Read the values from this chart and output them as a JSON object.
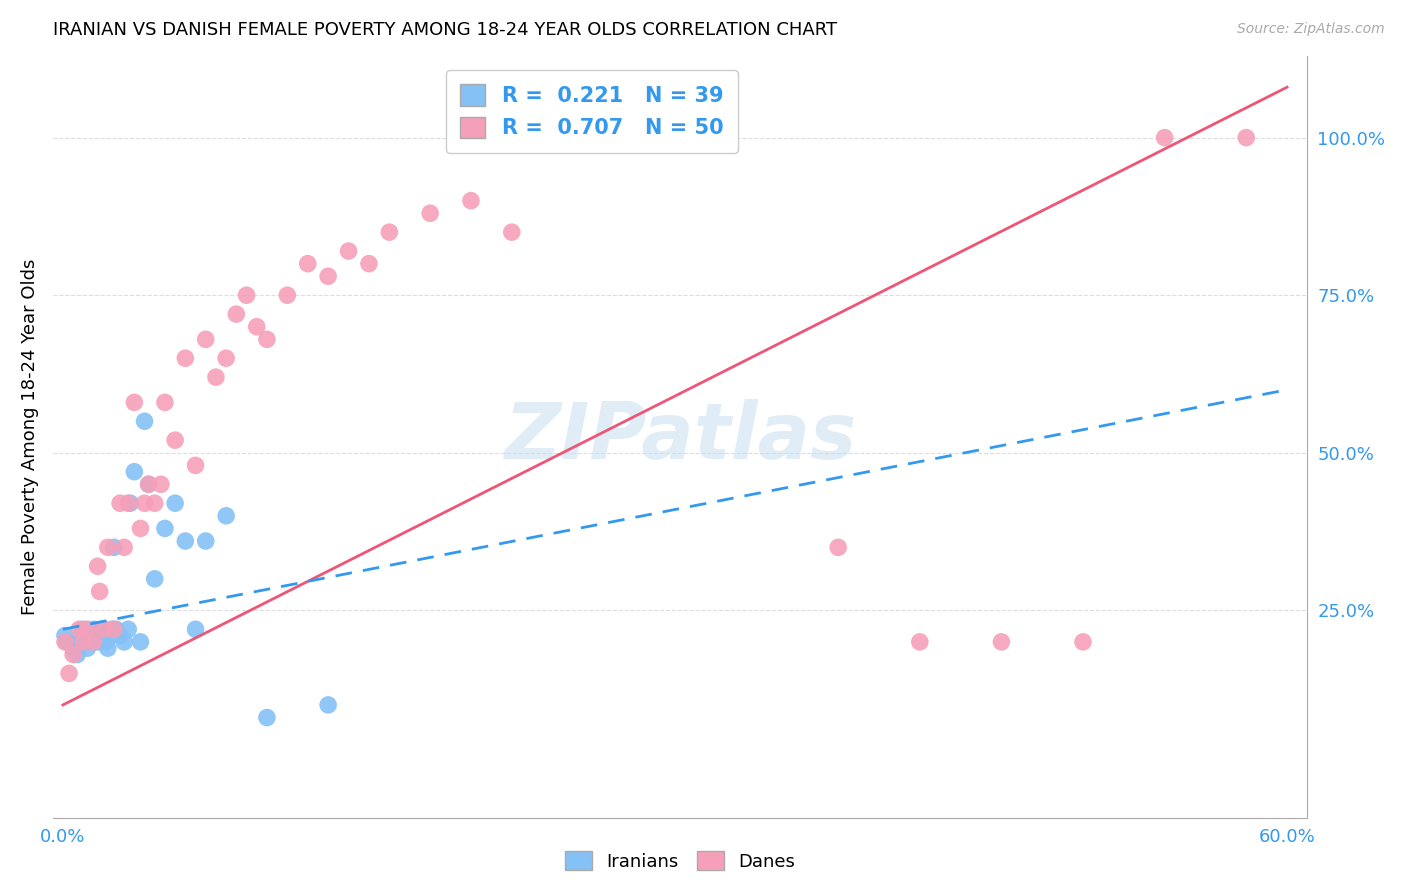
{
  "title": "IRANIAN VS DANISH FEMALE POVERTY AMONG 18-24 YEAR OLDS CORRELATION CHART",
  "source": "Source: ZipAtlas.com",
  "ylabel": "Female Poverty Among 18-24 Year Olds",
  "xlim_min": -0.005,
  "xlim_max": 0.61,
  "ylim_min": -0.08,
  "ylim_max": 1.13,
  "iranians_color": "#85c1f5",
  "danes_color": "#f5a0b8",
  "iranians_line_color": "#3399ee",
  "danes_line_color": "#ee5577",
  "R_iranians": 0.221,
  "N_iranians": 39,
  "R_danes": 0.707,
  "N_danes": 50,
  "watermark_text": "ZIPatlas",
  "background_color": "#ffffff",
  "grid_color": "#dddddd",
  "iranians_x": [
    0.001,
    0.002,
    0.005,
    0.007,
    0.008,
    0.009,
    0.01,
    0.011,
    0.012,
    0.013,
    0.015,
    0.016,
    0.017,
    0.018,
    0.019,
    0.02,
    0.021,
    0.022,
    0.023,
    0.024,
    0.025,
    0.026,
    0.028,
    0.03,
    0.032,
    0.033,
    0.035,
    0.038,
    0.04,
    0.042,
    0.045,
    0.05,
    0.055,
    0.06,
    0.065,
    0.07,
    0.08,
    0.1,
    0.13
  ],
  "iranians_y": [
    0.21,
    0.2,
    0.19,
    0.18,
    0.2,
    0.21,
    0.22,
    0.2,
    0.19,
    0.21,
    0.22,
    0.2,
    0.21,
    0.2,
    0.22,
    0.21,
    0.2,
    0.19,
    0.21,
    0.22,
    0.35,
    0.22,
    0.21,
    0.2,
    0.22,
    0.42,
    0.47,
    0.2,
    0.55,
    0.45,
    0.3,
    0.38,
    0.42,
    0.36,
    0.22,
    0.36,
    0.4,
    0.08,
    0.1
  ],
  "danes_x": [
    0.001,
    0.003,
    0.005,
    0.008,
    0.01,
    0.012,
    0.015,
    0.017,
    0.018,
    0.02,
    0.022,
    0.025,
    0.028,
    0.03,
    0.032,
    0.035,
    0.038,
    0.04,
    0.042,
    0.045,
    0.048,
    0.05,
    0.055,
    0.06,
    0.065,
    0.07,
    0.075,
    0.08,
    0.085,
    0.09,
    0.095,
    0.1,
    0.11,
    0.12,
    0.13,
    0.14,
    0.15,
    0.16,
    0.18,
    0.2,
    0.22,
    0.25,
    0.28,
    0.32,
    0.38,
    0.42,
    0.46,
    0.5,
    0.54,
    0.58
  ],
  "danes_y": [
    0.2,
    0.15,
    0.18,
    0.22,
    0.2,
    0.22,
    0.2,
    0.32,
    0.28,
    0.22,
    0.35,
    0.22,
    0.42,
    0.35,
    0.42,
    0.58,
    0.38,
    0.42,
    0.45,
    0.42,
    0.45,
    0.58,
    0.52,
    0.65,
    0.48,
    0.68,
    0.62,
    0.65,
    0.72,
    0.75,
    0.7,
    0.68,
    0.75,
    0.8,
    0.78,
    0.82,
    0.8,
    0.85,
    0.88,
    0.9,
    0.85,
    1.0,
    1.0,
    1.0,
    0.35,
    0.2,
    0.2,
    0.2,
    1.0,
    1.0
  ],
  "danes_line_x0": 0.0,
  "danes_line_x1": 0.6,
  "danes_line_y0": 0.1,
  "danes_line_y1": 1.08,
  "iranians_line_x0": 0.0,
  "iranians_line_x1": 0.6,
  "iranians_line_y0": 0.22,
  "iranians_line_y1": 0.6
}
